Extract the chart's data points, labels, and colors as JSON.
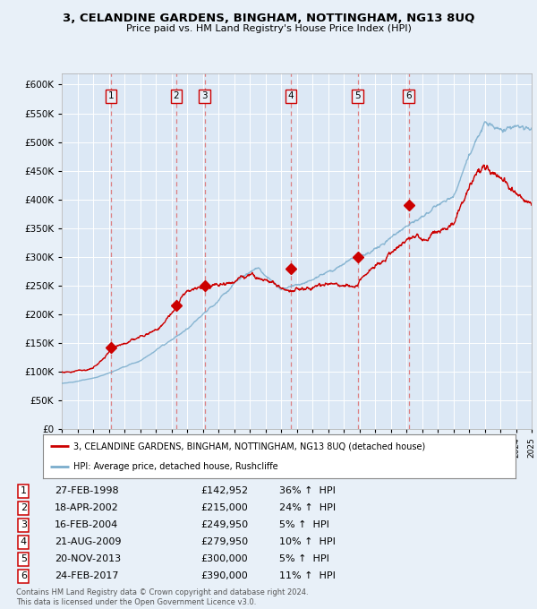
{
  "title": "3, CELANDINE GARDENS, BINGHAM, NOTTINGHAM, NG13 8UQ",
  "subtitle": "Price paid vs. HM Land Registry's House Price Index (HPI)",
  "legend_label_red": "3, CELANDINE GARDENS, BINGHAM, NOTTINGHAM, NG13 8UQ (detached house)",
  "legend_label_blue": "HPI: Average price, detached house, Rushcliffe",
  "footer1": "Contains HM Land Registry data © Crown copyright and database right 2024.",
  "footer2": "This data is licensed under the Open Government Licence v3.0.",
  "sales": [
    {
      "num": 1,
      "date": "27-FEB-1998",
      "price": 142952,
      "pct": "36%",
      "dir": "↑",
      "ref": "HPI"
    },
    {
      "num": 2,
      "date": "18-APR-2002",
      "price": 215000,
      "pct": "24%",
      "dir": "↑",
      "ref": "HPI"
    },
    {
      "num": 3,
      "date": "16-FEB-2004",
      "price": 249950,
      "pct": "5%",
      "dir": "↑",
      "ref": "HPI"
    },
    {
      "num": 4,
      "date": "21-AUG-2009",
      "price": 279950,
      "pct": "10%",
      "dir": "↑",
      "ref": "HPI"
    },
    {
      "num": 5,
      "date": "20-NOV-2013",
      "price": 300000,
      "pct": "5%",
      "dir": "↑",
      "ref": "HPI"
    },
    {
      "num": 6,
      "date": "24-FEB-2017",
      "price": 390000,
      "pct": "11%",
      "dir": "↑",
      "ref": "HPI"
    }
  ],
  "sale_years": [
    1998.15,
    2002.3,
    2004.12,
    2009.64,
    2013.89,
    2017.15
  ],
  "ylim": [
    0,
    620000
  ],
  "yticks": [
    0,
    50000,
    100000,
    150000,
    200000,
    250000,
    300000,
    350000,
    400000,
    450000,
    500000,
    550000,
    600000
  ],
  "bg_color": "#e8f0f8",
  "plot_bg": "#dce8f5",
  "red_color": "#cc0000",
  "blue_color": "#7aadcc",
  "dashed_color": "#dd6666",
  "box_color": "#cc0000",
  "grid_color": "#ffffff"
}
